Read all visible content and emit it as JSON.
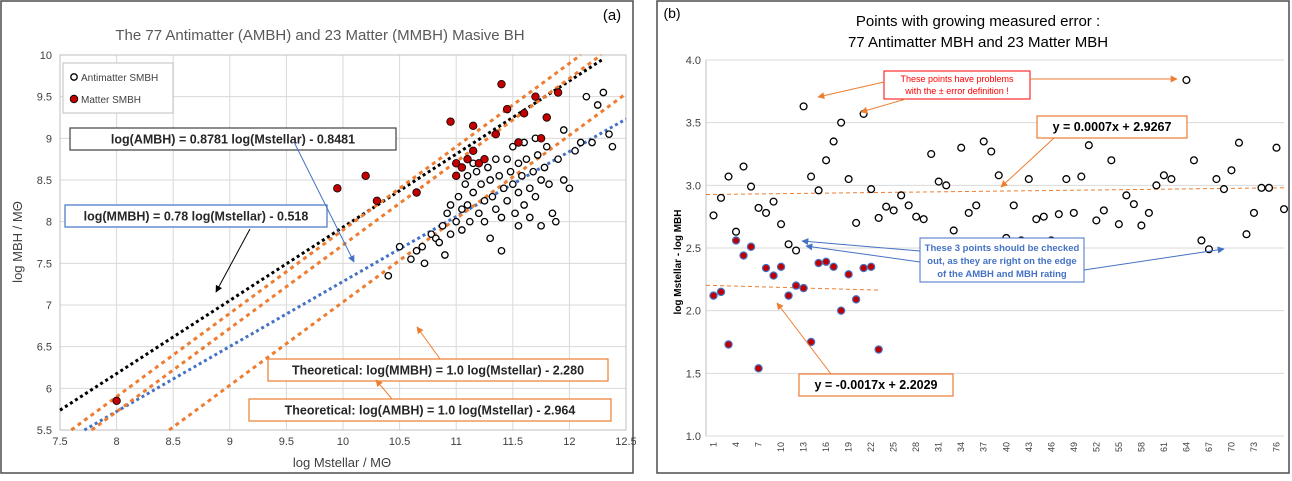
{
  "chart_data": [
    {
      "type": "scatter",
      "panel_label": "(a)",
      "title": "The 77  Antimatter (AMBH) and 23 Matter (MMBH) Masive BH",
      "xlabel": "log Mstellar / MΘ",
      "ylabel": "log MBH / MΘ",
      "xlim": [
        7.5,
        12.5
      ],
      "ylim": [
        5.5,
        10
      ],
      "x_ticks": [
        "7.5",
        "8",
        "8.5",
        "9",
        "9.5",
        "10",
        "10.5",
        "11",
        "11.5",
        "12",
        "12.5"
      ],
      "y_ticks": [
        "5.5",
        "6",
        "6.5",
        "7",
        "7.5",
        "8",
        "8.5",
        "9",
        "9.5",
        "10"
      ],
      "grid": true,
      "legend_position": "top-left",
      "colors": {
        "antimatter_fill": "#ffffff",
        "matter_fill": "#c00000",
        "black_line": "#000000",
        "orange_line": "#ed7d31",
        "blue_line": "#4472c4"
      },
      "series": [
        {
          "name": "Antimatter SMBH",
          "points": [
            [
              10.4,
              7.35
            ],
            [
              10.5,
              7.7
            ],
            [
              10.6,
              7.55
            ],
            [
              10.65,
              7.65
            ],
            [
              10.7,
              7.7
            ],
            [
              10.72,
              7.5
            ],
            [
              10.78,
              7.85
            ],
            [
              10.82,
              7.8
            ],
            [
              10.85,
              7.75
            ],
            [
              10.88,
              7.95
            ],
            [
              10.92,
              8.1
            ],
            [
              10.95,
              8.2
            ],
            [
              10.95,
              7.85
            ],
            [
              11.0,
              8.0
            ],
            [
              11.02,
              8.3
            ],
            [
              11.05,
              8.15
            ],
            [
              11.05,
              7.9
            ],
            [
              11.08,
              8.45
            ],
            [
              11.1,
              8.55
            ],
            [
              11.1,
              8.2
            ],
            [
              11.12,
              8.0
            ],
            [
              11.15,
              8.7
            ],
            [
              11.15,
              8.35
            ],
            [
              11.18,
              8.6
            ],
            [
              11.2,
              8.1
            ],
            [
              11.22,
              8.45
            ],
            [
              11.25,
              8.25
            ],
            [
              11.25,
              8.0
            ],
            [
              11.28,
              8.65
            ],
            [
              11.3,
              8.5
            ],
            [
              11.32,
              8.3
            ],
            [
              11.35,
              8.75
            ],
            [
              11.35,
              8.15
            ],
            [
              11.38,
              8.55
            ],
            [
              11.4,
              8.05
            ],
            [
              11.42,
              8.4
            ],
            [
              11.45,
              8.75
            ],
            [
              11.45,
              8.25
            ],
            [
              11.48,
              8.6
            ],
            [
              11.5,
              8.9
            ],
            [
              11.5,
              8.45
            ],
            [
              11.52,
              8.1
            ],
            [
              11.55,
              8.7
            ],
            [
              11.55,
              8.35
            ],
            [
              11.58,
              8.55
            ],
            [
              11.6,
              8.95
            ],
            [
              11.6,
              8.2
            ],
            [
              11.62,
              8.75
            ],
            [
              11.65,
              8.4
            ],
            [
              11.68,
              8.6
            ],
            [
              11.7,
              9.0
            ],
            [
              11.7,
              8.3
            ],
            [
              11.72,
              8.8
            ],
            [
              11.75,
              8.5
            ],
            [
              11.78,
              8.65
            ],
            [
              11.8,
              8.9
            ],
            [
              11.82,
              8.45
            ],
            [
              11.85,
              8.1
            ],
            [
              11.88,
              8.0
            ],
            [
              11.9,
              8.75
            ],
            [
              11.95,
              8.5
            ],
            [
              12.0,
              8.4
            ],
            [
              12.05,
              8.85
            ],
            [
              12.1,
              8.95
            ],
            [
              12.2,
              8.95
            ],
            [
              12.25,
              9.4
            ],
            [
              12.3,
              9.55
            ],
            [
              12.35,
              9.05
            ],
            [
              12.38,
              8.9
            ],
            [
              11.3,
              7.8
            ],
            [
              11.65,
              8.05
            ],
            [
              11.75,
              7.95
            ],
            [
              11.4,
              7.65
            ],
            [
              11.55,
              7.95
            ],
            [
              10.9,
              7.6
            ],
            [
              12.15,
              9.5
            ],
            [
              11.95,
              9.1
            ]
          ]
        },
        {
          "name": "Matter SMBH",
          "points": [
            [
              8.0,
              5.85
            ],
            [
              9.95,
              8.4
            ],
            [
              10.2,
              8.55
            ],
            [
              10.3,
              8.25
            ],
            [
              10.65,
              8.35
            ],
            [
              10.95,
              9.2
            ],
            [
              11.0,
              8.7
            ],
            [
              11.05,
              8.65
            ],
            [
              11.1,
              8.75
            ],
            [
              11.15,
              8.85
            ],
            [
              11.15,
              9.15
            ],
            [
              11.2,
              8.7
            ],
            [
              11.25,
              8.75
            ],
            [
              11.35,
              9.05
            ],
            [
              11.4,
              9.65
            ],
            [
              11.45,
              9.35
            ],
            [
              11.55,
              8.95
            ],
            [
              11.6,
              9.3
            ],
            [
              11.7,
              9.5
            ],
            [
              11.75,
              9.0
            ],
            [
              11.8,
              9.25
            ],
            [
              11.9,
              9.55
            ],
            [
              11.0,
              8.55
            ]
          ]
        }
      ],
      "fit_lines": [
        {
          "label": "log(AMBH) = 0.8781 log(Mstellar) - 0.8481",
          "slope": 0.8781,
          "intercept": -0.8481,
          "x_range": [
            7.5,
            12.3
          ],
          "color": "#000000"
        },
        {
          "label": "log(MMBH) = 0.78 log(Mstellar) - 0.518",
          "slope": 0.78,
          "intercept": -0.518,
          "x_range": [
            7.5,
            12.5
          ],
          "color": "#4472c4"
        },
        {
          "label": "Theoretical: log(MMBH) = 1.0 log(Mstellar)   - 2.280",
          "slope": 1.0,
          "intercept": -2.28,
          "x_range": [
            7.5,
            12.5
          ],
          "color": "#ed7d31"
        },
        {
          "label": "Theoretical: log(AMBH) = 1.0 log(Mstellar)   - 2.964",
          "slope": 1.0,
          "intercept": -2.964,
          "x_range": [
            7.5,
            12.5
          ],
          "color": "#ed7d31"
        },
        {
          "slope": 1.0,
          "intercept": -2.1,
          "x_range": [
            7.5,
            12.3
          ],
          "color": "#ed7d31"
        }
      ]
    },
    {
      "type": "scatter",
      "panel_label": "(b)",
      "title": "Points with growing measured error :",
      "subtitle": "77 Antimatter MBH and 23 Matter MBH",
      "ylabel": "log Mstellar - log MBH",
      "xlim": [
        0,
        77
      ],
      "ylim": [
        1.0,
        4.0
      ],
      "x_ticks": [
        "1",
        "4",
        "7",
        "10",
        "13",
        "16",
        "19",
        "22",
        "25",
        "28",
        "31",
        "34",
        "37",
        "40",
        "43",
        "46",
        "49",
        "52",
        "55",
        "58",
        "61",
        "64",
        "67",
        "70",
        "73",
        "76"
      ],
      "y_ticks": [
        "1.0",
        "1.5",
        "2.0",
        "2.5",
        "3.0",
        "3.5",
        "4.0"
      ],
      "grid": true,
      "series": [
        {
          "name": "Antimatter MBH",
          "points": [
            [
              1,
              2.76
            ],
            [
              2,
              2.9
            ],
            [
              3,
              3.07
            ],
            [
              4,
              2.63
            ],
            [
              5,
              3.15
            ],
            [
              6,
              2.99
            ],
            [
              7,
              2.82
            ],
            [
              8,
              2.78
            ],
            [
              9,
              2.87
            ],
            [
              10,
              2.69
            ],
            [
              11,
              2.53
            ],
            [
              12,
              2.48
            ],
            [
              13,
              3.63
            ],
            [
              14,
              3.07
            ],
            [
              15,
              2.96
            ],
            [
              16,
              3.2
            ],
            [
              17,
              3.35
            ],
            [
              18,
              3.5
            ],
            [
              19,
              3.05
            ],
            [
              20,
              2.7
            ],
            [
              21,
              3.57
            ],
            [
              22,
              2.97
            ],
            [
              23,
              2.74
            ],
            [
              24,
              2.83
            ],
            [
              25,
              2.8
            ],
            [
              26,
              2.92
            ],
            [
              27,
              2.84
            ],
            [
              28,
              2.75
            ],
            [
              29,
              2.73
            ],
            [
              30,
              3.25
            ],
            [
              31,
              3.03
            ],
            [
              32,
              3.0
            ],
            [
              33,
              2.64
            ],
            [
              34,
              3.3
            ],
            [
              35,
              2.78
            ],
            [
              36,
              2.84
            ],
            [
              37,
              3.35
            ],
            [
              38,
              3.27
            ],
            [
              39,
              3.08
            ],
            [
              40,
              2.58
            ],
            [
              41,
              2.84
            ],
            [
              42,
              2.56
            ],
            [
              43,
              3.05
            ],
            [
              44,
              2.73
            ],
            [
              45,
              2.75
            ],
            [
              46,
              2.56
            ],
            [
              47,
              2.77
            ],
            [
              48,
              3.05
            ],
            [
              49,
              2.78
            ],
            [
              50,
              3.07
            ],
            [
              51,
              3.32
            ],
            [
              52,
              2.72
            ],
            [
              53,
              2.8
            ],
            [
              54,
              3.2
            ],
            [
              55,
              2.69
            ],
            [
              56,
              2.92
            ],
            [
              57,
              2.85
            ],
            [
              58,
              2.68
            ],
            [
              59,
              2.78
            ],
            [
              60,
              3.0
            ],
            [
              61,
              3.08
            ],
            [
              62,
              3.05
            ],
            [
              63,
              3.43
            ],
            [
              64,
              3.84
            ],
            [
              65,
              3.2
            ],
            [
              66,
              2.56
            ],
            [
              67,
              2.49
            ],
            [
              68,
              3.05
            ],
            [
              69,
              2.97
            ],
            [
              70,
              3.12
            ],
            [
              71,
              3.34
            ],
            [
              72,
              2.61
            ],
            [
              73,
              2.78
            ],
            [
              74,
              2.98
            ],
            [
              75,
              2.98
            ],
            [
              76,
              3.3
            ],
            [
              77,
              2.81
            ]
          ]
        },
        {
          "name": "Matter MBH",
          "points": [
            [
              1,
              2.12
            ],
            [
              2,
              2.15
            ],
            [
              3,
              1.73
            ],
            [
              4,
              2.56
            ],
            [
              5,
              2.44
            ],
            [
              6,
              2.51
            ],
            [
              7,
              1.54
            ],
            [
              8,
              2.34
            ],
            [
              9,
              2.28
            ],
            [
              10,
              2.35
            ],
            [
              11,
              2.12
            ],
            [
              12,
              2.2
            ],
            [
              13,
              2.18
            ],
            [
              14,
              1.75
            ],
            [
              15,
              2.38
            ],
            [
              16,
              2.39
            ],
            [
              17,
              2.35
            ],
            [
              18,
              2.0
            ],
            [
              19,
              2.29
            ],
            [
              20,
              2.09
            ],
            [
              21,
              2.34
            ],
            [
              22,
              2.35
            ],
            [
              23,
              1.69
            ]
          ]
        }
      ],
      "trendlines": [
        {
          "label": "y = 0.0007x  + 2.9267",
          "slope": 0.0007,
          "intercept": 2.9267,
          "x_range": [
            0,
            77
          ]
        },
        {
          "label": "y = -0.0017x  + 2.2029",
          "slope": -0.0017,
          "intercept": 2.2029,
          "x_range": [
            0,
            23
          ]
        }
      ],
      "annotations": [
        {
          "text_lines": [
            "These points have problems",
            "with the ± error definition !"
          ],
          "color": "#ff0000"
        },
        {
          "text_lines": [
            "These 3 points should be checked",
            "out, as they are right on the edge",
            "of the AMBH and MBH rating"
          ],
          "color": "#4472c4"
        }
      ]
    }
  ]
}
